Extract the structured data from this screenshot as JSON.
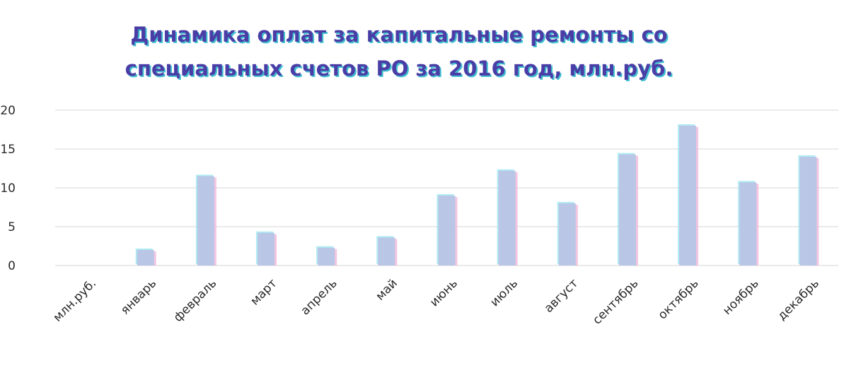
{
  "chart_data": {
    "type": "bar",
    "title_lines": [
      "Динамика оплат за капитальные ремонты со",
      "специальных счетов  РО за 2016 год, млн.руб."
    ],
    "categories": [
      "млн.руб.",
      "январь",
      "февраль",
      "март",
      "апрель",
      "май",
      "июнь",
      "июль",
      "август",
      "сентябрь",
      "октябрь",
      "ноябрь",
      "декабрь"
    ],
    "values": [
      0,
      2.0,
      11.5,
      4.2,
      2.3,
      3.6,
      9.0,
      12.2,
      8.0,
      14.3,
      18.0,
      10.7,
      14.0
    ],
    "ylim": [
      0,
      20
    ],
    "yticks": [
      0,
      5,
      10,
      15,
      20
    ],
    "grid": true,
    "legend": "none",
    "colors": {
      "bar": "#b9c6e6",
      "bar_edge_left": "#96e4ee",
      "bar_edge_right": "#f0b3d8",
      "grid": "#d6d6d6",
      "title": "#4a3ea6",
      "title_shadow": "#1fb7c9"
    }
  }
}
